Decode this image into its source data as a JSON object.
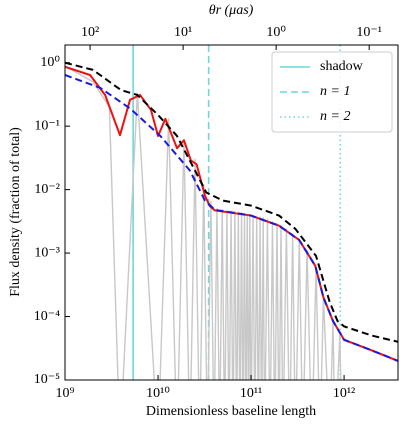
{
  "chart_data": {
    "type": "line",
    "xlabel": "Dimensionless baseline length",
    "ylabel": "Flux density (fraction of total)",
    "x2label": "θr (μas)",
    "xscale": "log",
    "yscale": "log",
    "x2scale": "log",
    "xlim": [
      1000000000.0,
      3800000000000.0
    ],
    "ylim": [
      1e-05,
      1.9
    ],
    "x2lim": [
      186,
      0.049
    ],
    "xticks": [
      {
        "value": 1000000000.0,
        "label": "10⁹"
      },
      {
        "value": 10000000000.0,
        "label": "10¹⁰"
      },
      {
        "value": 100000000000.0,
        "label": "10¹¹"
      },
      {
        "value": 1000000000000.0,
        "label": "10¹²"
      }
    ],
    "yticks": [
      {
        "value": 1e-05,
        "label": "10⁻⁵"
      },
      {
        "value": 0.0001,
        "label": "10⁻⁴"
      },
      {
        "value": 0.001,
        "label": "10⁻³"
      },
      {
        "value": 0.01,
        "label": "10⁻²"
      },
      {
        "value": 0.1,
        "label": "10⁻¹"
      },
      {
        "value": 1,
        "label": "10⁰"
      }
    ],
    "x2ticks": [
      {
        "value": 100,
        "label": "10²"
      },
      {
        "value": 10,
        "label": "10¹"
      },
      {
        "value": 1,
        "label": "10⁰"
      },
      {
        "value": 0.1,
        "label": "10⁻¹"
      }
    ],
    "legend": "upper right",
    "series": [
      {
        "color": "#c8c8c8",
        "linestyle": "solid",
        "x": [
          1000000000.0,
          2000000000.0,
          3000000000.0,
          3900000000.0,
          6000000000.0,
          10000000000.0,
          13000000000.0,
          16000000000.0,
          19000000000.0,
          22000000000.0,
          25000000000.0,
          28000000000.0,
          31000000000.0,
          34000000000.0,
          37000000000.0,
          40000000000.0,
          43000000000.0,
          46000000000.0,
          49000000000.0,
          52000000000.0,
          55000000000.0,
          58000000000.0,
          61000000000.0,
          64000000000.0,
          67000000000.0,
          70000000000.0,
          73000000000.0,
          76000000000.0,
          79000000000.0,
          82000000000.0,
          85000000000.0,
          88000000000.0,
          91000000000.0,
          94000000000.0,
          97000000000.0,
          100000000000.0,
          105000000000.0,
          110000000000.0,
          115000000000.0,
          120000000000.0,
          125000000000.0,
          130000000000.0,
          135000000000.0,
          140000000000.0,
          150000000000.0,
          160000000000.0,
          170000000000.0,
          180000000000.0,
          190000000000.0,
          200000000000.0,
          210000000000.0,
          220000000000.0,
          240000000000.0,
          260000000000.0,
          280000000000.0,
          300000000000.0,
          330000000000.0,
          360000000000.0,
          400000000000.0,
          450000000000.0,
          500000000000.0,
          550000000000.0,
          600000000000.0,
          700000000000.0,
          760000000000.0,
          800000000000.0,
          900000000000.0,
          950000000000.0
        ],
        "values": [
          0.88,
          0.5,
          0.2,
          1e-06,
          0.33,
          1e-06,
          0.13,
          1e-06,
          0.06,
          1e-06,
          0.03,
          1e-06,
          0.012,
          1e-06,
          0.0065,
          1e-06,
          0.005,
          1e-06,
          0.0048,
          1e-06,
          0.0047,
          1e-06,
          0.0046,
          1e-06,
          0.0045,
          1e-06,
          0.0044,
          1e-06,
          0.0043,
          1e-06,
          0.0042,
          1e-06,
          0.0041,
          1e-06,
          0.004,
          1e-06,
          0.0039,
          1e-06,
          0.0038,
          1e-06,
          0.0037,
          1e-06,
          0.0036,
          1e-06,
          0.0034,
          1e-06,
          0.0031,
          1e-06,
          0.0029,
          1e-06,
          0.0027,
          1e-06,
          0.0024,
          1e-06,
          0.002,
          1e-06,
          0.0016,
          1e-06,
          0.0011,
          1e-06,
          0.0006,
          1e-06,
          0.0002,
          1e-06,
          8.5e-05,
          1e-06,
          5e-05,
          1e-06
        ]
      },
      {
        "color": "#ee1111",
        "linestyle": "solid",
        "x": [
          1000000000.0,
          1860000000.0,
          2700000000.0,
          3900000000.0,
          5000000000.0,
          6400000000.0,
          8400000000.0,
          10000000000.0,
          12000000000.0,
          16000000000.0,
          19000000000.0,
          22500000000.0,
          26000000000.0,
          32000000000.0,
          36000000000.0,
          41000000000.0,
          100000000000.0,
          200000000000.0,
          330000000000.0,
          490000000000.0,
          600000000000.0,
          760000000000.0,
          1000000000000.0,
          1900000000000.0,
          3800000000000.0
        ],
        "values": [
          0.86,
          0.64,
          0.31,
          0.072,
          0.26,
          0.31,
          0.18,
          0.07,
          0.13,
          0.045,
          0.06,
          0.029,
          0.025,
          0.008,
          0.0055,
          0.0047,
          0.0039,
          0.0027,
          0.0016,
          0.00063,
          0.0002,
          8.5e-05,
          4.3e-05,
          3e-05,
          2e-05
        ]
      },
      {
        "color": "#1a1adb",
        "linestyle": "dashed",
        "x": [
          1000000000.0,
          2400000000.0,
          5000000000.0,
          10600000000.0,
          22000000000.0,
          32000000000.0,
          41000000000.0,
          100000000000.0,
          200000000000.0,
          330000000000.0,
          490000000000.0,
          600000000000.0,
          760000000000.0,
          1000000000000.0,
          1900000000000.0,
          3800000000000.0
        ],
        "values": [
          0.64,
          0.4,
          0.19,
          0.07,
          0.02,
          0.0067,
          0.0048,
          0.0039,
          0.0027,
          0.0016,
          0.00063,
          0.0002,
          8.5e-05,
          4.3e-05,
          3e-05,
          2e-05
        ]
      },
      {
        "color": "#000000",
        "linestyle": "dashed",
        "x": [
          1000000000.0,
          2000000000.0,
          4000000000.0,
          6000000000.0,
          10000000000.0,
          16000000000.0,
          25000000000.0,
          33000000000.0,
          50000000000.0,
          100000000000.0,
          200000000000.0,
          300000000000.0,
          500000000000.0,
          700000000000.0,
          850000000000.0,
          1000000000000.0,
          2000000000000.0,
          3800000000000.0
        ],
        "values": [
          1.0,
          0.77,
          0.37,
          0.31,
          0.15,
          0.07,
          0.02,
          0.009,
          0.0067,
          0.0056,
          0.0039,
          0.0024,
          0.0009,
          0.00017,
          8.5e-05,
          7e-05,
          5e-05,
          4e-05
        ]
      }
    ],
    "vlines": [
      {
        "name": "shadow",
        "x": 5400000000.0,
        "color": "#6fd6dc",
        "linestyle": "solid"
      },
      {
        "name": "n = 1",
        "x": 35000000000.0,
        "color": "#6fd6dc",
        "linestyle": "dashed"
      },
      {
        "name": "n = 2",
        "x": 910000000000.0,
        "color": "#6fd6dc",
        "linestyle": "dotted"
      }
    ]
  }
}
